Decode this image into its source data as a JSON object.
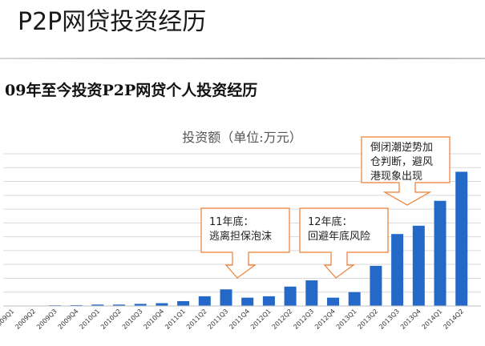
{
  "slide": {
    "title": "P2P网贷投资经历",
    "subtitle": "09年至今投资P2P网贷个人投资经历"
  },
  "colors": {
    "bar": "#2469c8",
    "callout_border": "#ed7d31",
    "callout_fill": "#ffffff",
    "grid": "#d9d9d9"
  },
  "chart_data": {
    "type": "bar",
    "title": "投资额（单位:万元）",
    "categories": [
      "2009Q1",
      "2009Q2",
      "2009Q3",
      "2009Q4",
      "2010Q1",
      "2010Q2",
      "2010Q3",
      "2010Q4",
      "2011Q1",
      "2011Q2",
      "2011Q3",
      "2011Q4",
      "2012Q1",
      "2012Q2",
      "2012Q3",
      "2012Q4",
      "2013Q1",
      "2013Q2",
      "2013Q3",
      "2013Q4",
      "2014Q1",
      "2014Q2"
    ],
    "values": [
      0.3,
      0.3,
      0.5,
      0.6,
      1,
      1,
      1.5,
      2,
      3.5,
      7,
      12,
      6,
      7,
      14,
      18.5,
      6,
      10,
      29,
      52,
      58,
      76,
      97
    ],
    "ylim": [
      0,
      110
    ],
    "grid": true,
    "annotations": [
      {
        "lines": [
          "11年底：",
          "逃离担保泡沫"
        ],
        "points_to": "2011Q4"
      },
      {
        "lines": [
          "12年底：",
          "回避年底风险"
        ],
        "points_to": "2012Q4"
      },
      {
        "lines": [
          "倒闭潮逆势加",
          "仓判断，避风",
          "港现象出现"
        ],
        "points_to": "2013Q3"
      }
    ]
  }
}
